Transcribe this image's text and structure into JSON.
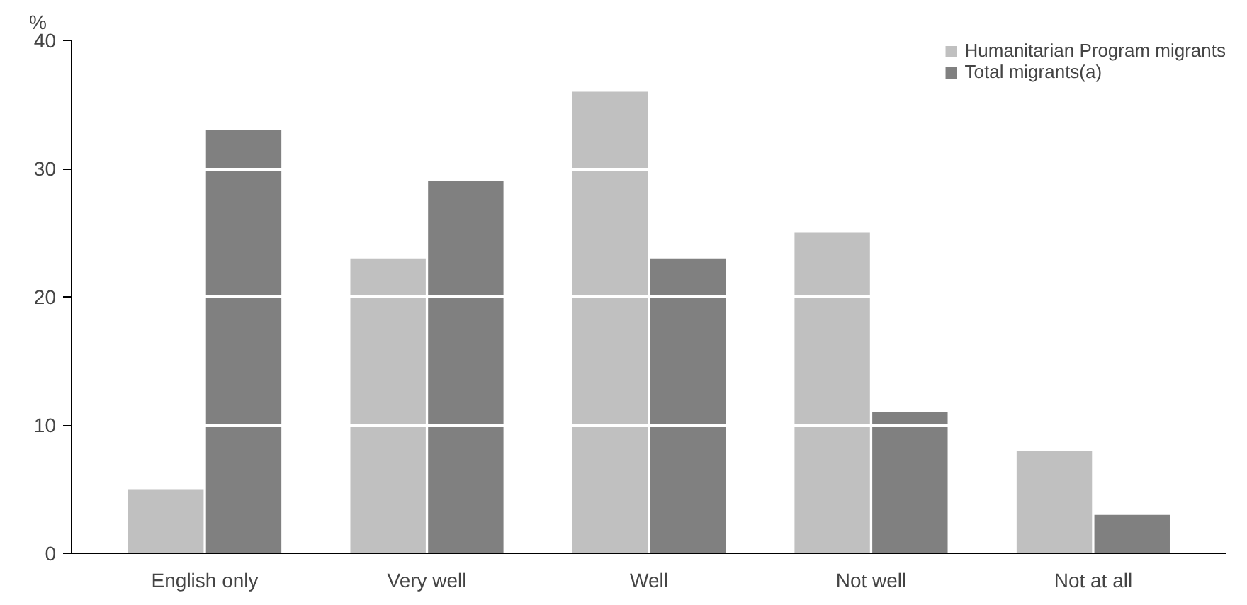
{
  "chart_data": {
    "type": "bar",
    "ylabel": "%",
    "categories": [
      "English only",
      "Very well",
      "Well",
      "Not well",
      "Not at all"
    ],
    "series": [
      {
        "name": "Humanitarian Program migrants",
        "color": "#c0c0c0",
        "values": [
          5,
          23,
          36,
          25,
          8
        ]
      },
      {
        "name": "Total migrants(a)",
        "color": "#808080",
        "values": [
          33,
          29,
          23,
          11,
          3
        ]
      }
    ],
    "ylim": [
      0,
      40
    ],
    "yticks": [
      0,
      10,
      20,
      30,
      40
    ],
    "grid": "y",
    "legend": "top right"
  }
}
